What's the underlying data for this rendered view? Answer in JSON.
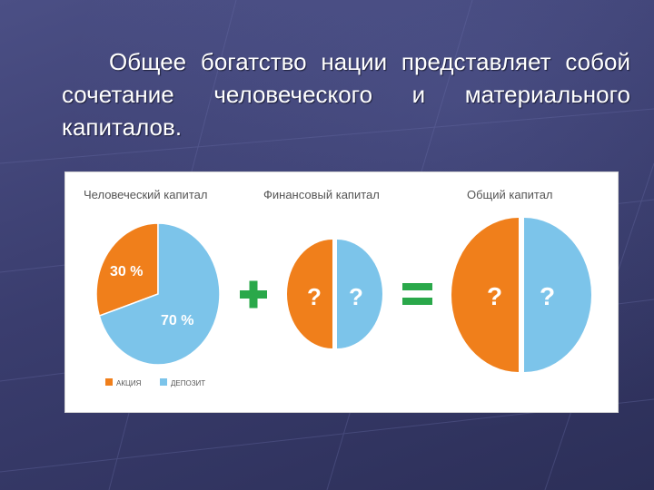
{
  "slide": {
    "text": "Общее богатство нации представляет собой сочетание человеческого и материального капиталов."
  },
  "figure": {
    "titles": {
      "human": "Человеческий капитал",
      "financial": "Финансовый капитал",
      "total": "Общий капитал"
    },
    "human_pie": {
      "slices": [
        {
          "label": "30 %",
          "value": 30,
          "color": "#f07f1b"
        },
        {
          "label": "70 %",
          "value": 70,
          "color": "#7cc4ea"
        }
      ]
    },
    "financial_pie": {
      "left_label": "?",
      "right_label": "?"
    },
    "total_pie": {
      "left_label": "?",
      "right_label": "?"
    },
    "operators": {
      "plus": "+",
      "equals": "="
    },
    "legend": [
      {
        "label": "АКЦИЯ",
        "color": "#f07f1b"
      },
      {
        "label": "ДЕПОЗИТ",
        "color": "#7cc4ea"
      }
    ],
    "colors": {
      "orange": "#f07f1b",
      "blue": "#7cc4ea",
      "green": "#2aa84a",
      "title": "#555555"
    }
  }
}
